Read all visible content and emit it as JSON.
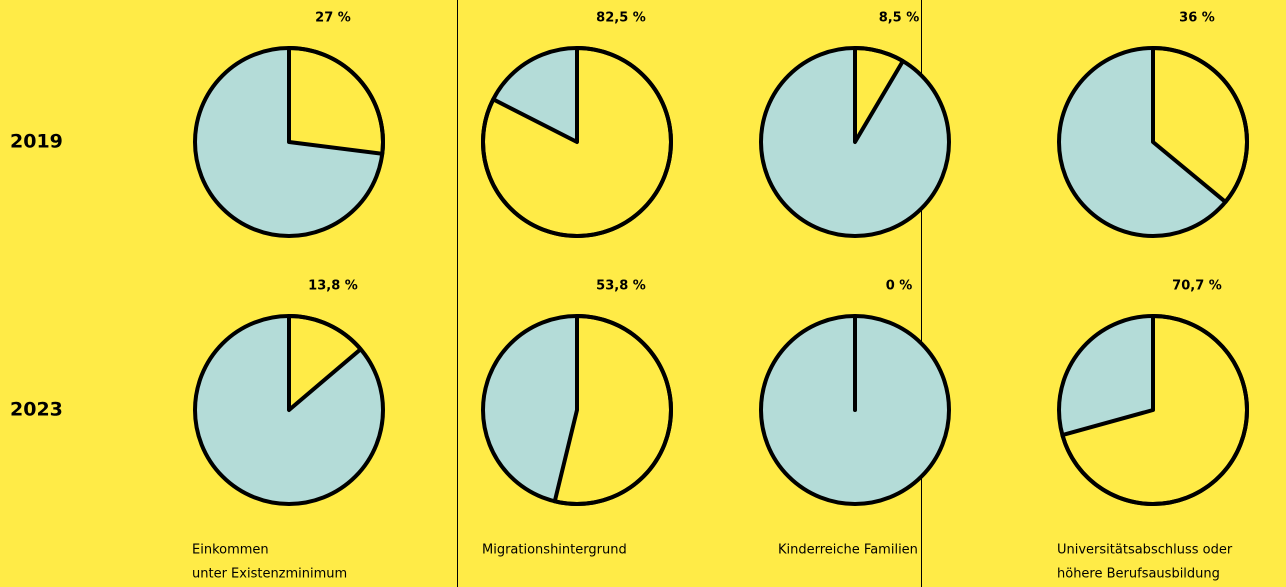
{
  "row_labels": [
    "2019",
    "2023"
  ],
  "column_labels": [
    [
      "Einkommen",
      "unter Existenzminimum"
    ],
    [
      "Migrationshintergrund"
    ],
    [
      "Kinderreiche Familien"
    ],
    [
      "Universitätsabschluss oder",
      "höhere Berufsausbildung"
    ]
  ],
  "chart_data": [
    {
      "type": "pie",
      "values": [
        27
      ],
      "value_labels": [
        "27 %"
      ],
      "color": "#ffeb47"
    },
    {
      "type": "pie",
      "values": [
        82.5
      ],
      "value_labels": [
        "82,5 %"
      ],
      "color": "#ffeb47"
    },
    {
      "type": "pie",
      "values": [
        8.5
      ],
      "value_labels": [
        "8,5 %"
      ],
      "color": "#ffeb47"
    },
    {
      "type": "pie",
      "values": [
        36
      ],
      "value_labels": [
        "36 %"
      ],
      "color": "#ffeb47"
    },
    {
      "type": "pie",
      "values": [
        13.8
      ],
      "value_labels": [
        "13,8 %"
      ],
      "color": "#ffeb47"
    },
    {
      "type": "pie",
      "values": [
        53.8
      ],
      "value_labels": [
        "53,8 %"
      ],
      "color": "#ffeb47"
    },
    {
      "type": "pie",
      "values": [
        0
      ],
      "value_labels": [
        "0 %"
      ],
      "color": "#ffeb47"
    },
    {
      "type": "pie",
      "values": [
        70.7
      ],
      "value_labels": [
        "70,7 %"
      ],
      "color": "#ffeb47"
    }
  ]
}
